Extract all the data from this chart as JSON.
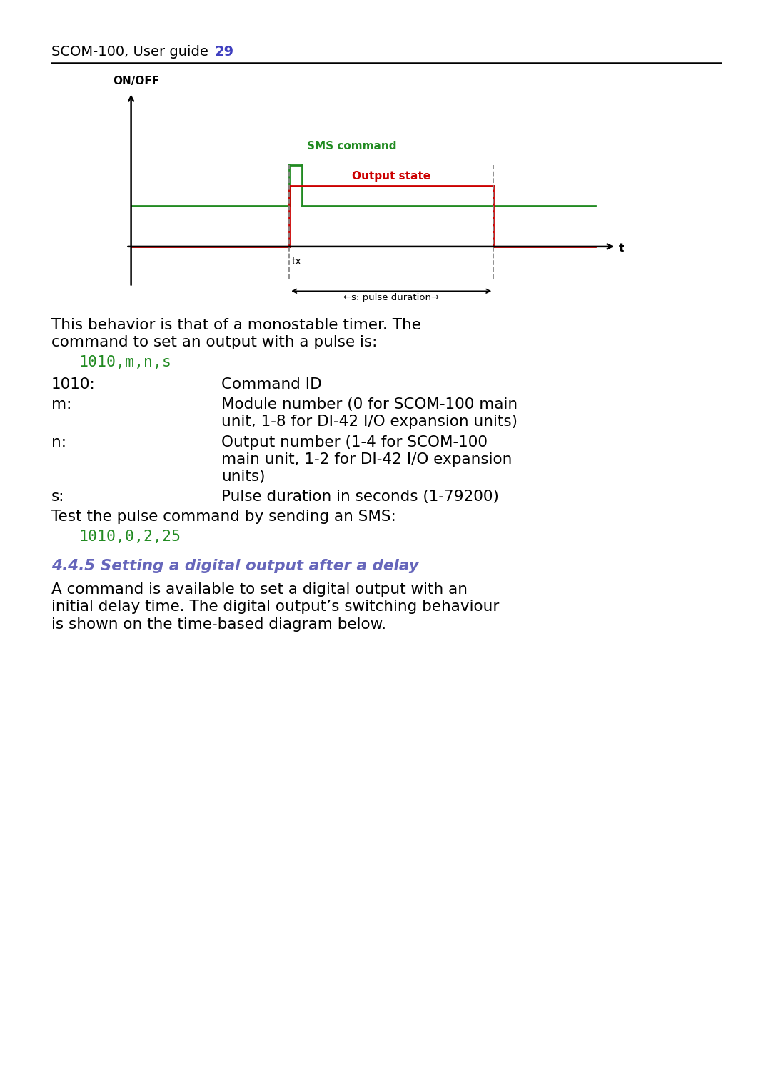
{
  "background_color": "#ffffff",
  "page_width": 10.8,
  "page_height": 15.28,
  "header_text": "SCOM-100, User guide",
  "header_page": "29",
  "header_color": "#000000",
  "header_page_color": "#4040c0",
  "diagram": {
    "ylabel": "ON/OFF",
    "xlabel_t": "t",
    "xlabel_tx": "tx",
    "sms_label": "SMS command",
    "sms_color": "#228B22",
    "output_label": "Output state",
    "output_color": "#cc0000",
    "pulse_duration_label": "←s: pulse duration→",
    "dashed_color": "#888888",
    "axis_color": "#000000"
  },
  "body": [
    {
      "type": "paragraph",
      "text": "This behavior is that of a monostable timer. The\ncommand to set an output with a pulse is:",
      "color": "#000000",
      "fontsize": 15.5,
      "bold": false,
      "italic": false
    },
    {
      "type": "code",
      "text": "1010,m,n,s",
      "color": "#228B22",
      "fontsize": 15.5
    },
    {
      "type": "table_row",
      "label": "1010:",
      "desc": "Command ID",
      "fontsize": 15.5
    },
    {
      "type": "table_row",
      "label": "m:",
      "desc": "Module number (0 for SCOM-100 main\nunit, 1-8 for DI-42 I/O expansion units)",
      "fontsize": 15.5
    },
    {
      "type": "table_row",
      "label": "n:",
      "desc": "Output number (1-4 for SCOM-100\nmain unit, 1-2 for DI-42 I/O expansion\nunits)",
      "fontsize": 15.5
    },
    {
      "type": "table_row",
      "label": "s:",
      "desc": "Pulse duration in seconds (1-79200)",
      "fontsize": 15.5
    },
    {
      "type": "paragraph",
      "text": "Test the pulse command by sending an SMS:",
      "color": "#000000",
      "fontsize": 15.5,
      "bold": false,
      "italic": false
    },
    {
      "type": "code",
      "text": "1010,0,2,25",
      "color": "#228B22",
      "fontsize": 15.5
    },
    {
      "type": "section_heading",
      "text": "4.4.5 Setting a digital output after a delay",
      "color": "#6666bb",
      "fontsize": 15.5,
      "bold": true,
      "italic": true
    },
    {
      "type": "paragraph",
      "text": "A command is available to set a digital output with an\ninitial delay time. The digital output’s switching behaviour\nis shown on the time-based diagram below.",
      "color": "#000000",
      "fontsize": 15.5,
      "bold": false,
      "italic": false
    }
  ]
}
